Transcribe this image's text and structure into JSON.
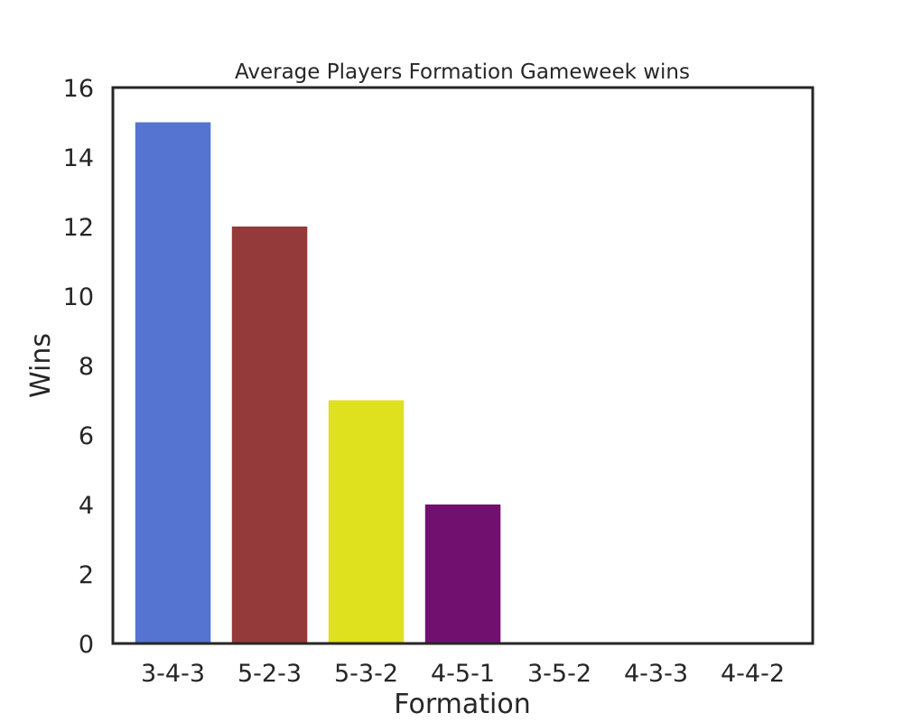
{
  "chart_data": {
    "type": "bar",
    "title": "Average Players Formation Gameweek wins",
    "xlabel": "Formation",
    "ylabel": "Wins",
    "categories": [
      "3-4-3",
      "5-2-3",
      "5-3-2",
      "4-5-1",
      "3-5-2",
      "4-3-3",
      "4-4-2"
    ],
    "values": [
      15,
      12,
      7,
      4,
      0,
      0,
      0
    ],
    "colors": [
      "#5573d1",
      "#943a3a",
      "#dfe01e",
      "#721070",
      "#5573d1",
      "#5573d1",
      "#5573d1"
    ],
    "ylim": [
      0,
      16
    ],
    "yticks": [
      0,
      2,
      4,
      6,
      8,
      10,
      12,
      14,
      16
    ],
    "grid": false,
    "legend": false
  }
}
